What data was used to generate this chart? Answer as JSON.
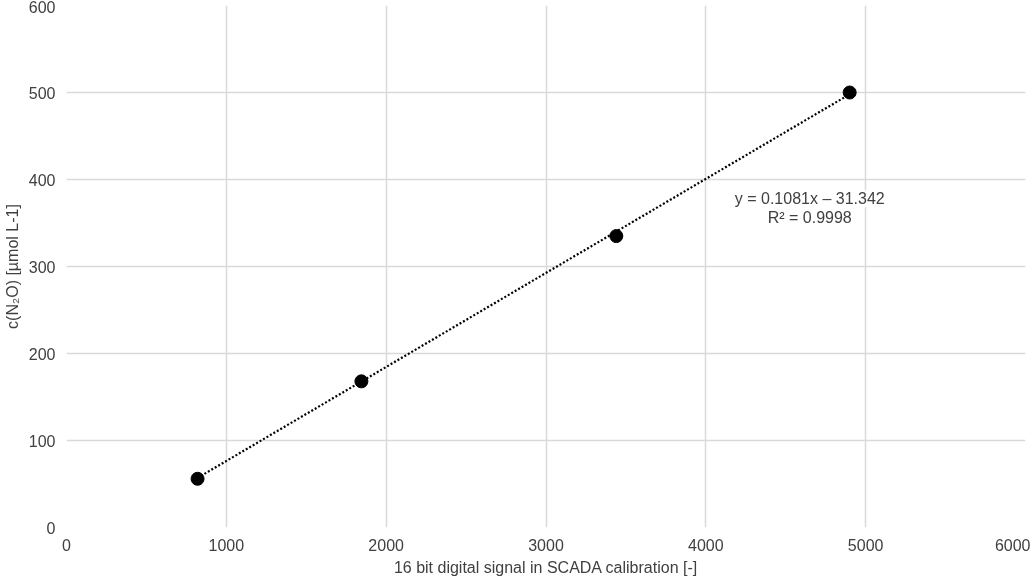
{
  "chart_data": {
    "type": "scatter",
    "xlabel": "16 bit digital signal in SCADA calibration [-]",
    "ylabel": "c(N₂O) [µmol L-1]",
    "xlim": [
      0,
      6000
    ],
    "xticks": [
      0,
      1000,
      2000,
      3000,
      4000,
      5000,
      6000
    ],
    "ylim": [
      0,
      600
    ],
    "yticks": [
      0,
      100,
      200,
      300,
      400,
      500,
      600
    ],
    "grid": true,
    "marker": "circle",
    "series": [
      {
        "color": "#000000",
        "x": [
          820,
          1845,
          3440,
          4900
        ],
        "values": [
          56,
          168,
          335,
          500
        ]
      },
      {
        "type": "line",
        "color": "#000000",
        "line_style": "dotted",
        "marker": "none",
        "x": [
          820,
          4900
        ],
        "values": [
          57,
          498
        ]
      }
    ],
    "annotations": [
      "y = 0.1081x – 31.342",
      "R² = 0.9998"
    ]
  }
}
